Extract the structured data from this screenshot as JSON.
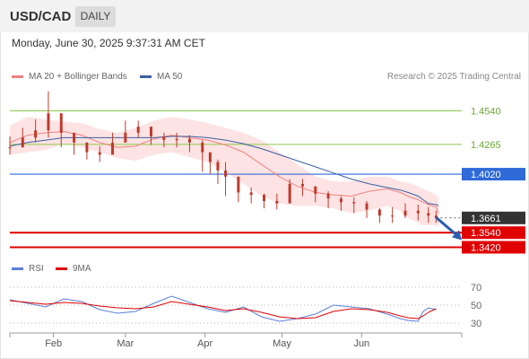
{
  "header": {
    "symbol": "USD/CAD",
    "period": "DAILY"
  },
  "timestamp": "Monday, June 30, 2025 9:37:31 AM CET",
  "legend": {
    "ma20_label": "MA 20 + Bollinger Bands",
    "ma50_label": "MA 50",
    "copyright": "Research © 2025 Trading Central"
  },
  "rsi_legend": {
    "rsi_label": "RSI",
    "ma_label": "9MA"
  },
  "colors": {
    "ma20": "#f08080",
    "ma50": "#3a5fa0",
    "bollinger_fill": "#fde3e3",
    "candle": "#c0392b",
    "support": "#e00000",
    "resistance": "#2e6ad8",
    "target_line": "#8cc84b",
    "current": "#333333",
    "arrow": "#2a5db0",
    "rsi": "#5b7fd6",
    "rsi_ma": "#e00000"
  },
  "chart_data": [
    {
      "type": "candlestick",
      "title": "USD/CAD",
      "timeframe": "DAILY",
      "x_range": [
        "2025-01-15",
        "2025-07-10"
      ],
      "x_tick_labels": [
        "Feb",
        "Mar",
        "Apr",
        "May",
        "Jun"
      ],
      "ylim": [
        1.335,
        1.475
      ],
      "current_price": "1.3661",
      "levels": [
        {
          "value": 1.454,
          "label": "1.4540",
          "kind": "target"
        },
        {
          "value": 1.4265,
          "label": "1.4265",
          "kind": "target"
        },
        {
          "value": 1.402,
          "label": "1.4020",
          "kind": "resistance"
        },
        {
          "value": 1.354,
          "label": "1.3540",
          "kind": "support"
        },
        {
          "value": 1.342,
          "label": "1.3420",
          "kind": "support"
        }
      ],
      "series": [
        {
          "name": "MA 20 + Bollinger Bands",
          "values": [
            1.428,
            1.434,
            1.436,
            1.437,
            1.434,
            1.428,
            1.424,
            1.425,
            1.431,
            1.434,
            1.432,
            1.43,
            1.426,
            1.42,
            1.41,
            1.4,
            1.392,
            1.387,
            1.385,
            1.384,
            1.388,
            1.39,
            1.387,
            1.384,
            1.381,
            1.379,
            1.377,
            1.375,
            1.37
          ]
        },
        {
          "name": "MA 50",
          "values": [
            1.425,
            1.428,
            1.43,
            1.432,
            1.432,
            1.432,
            1.432,
            1.432,
            1.432,
            1.433,
            1.433,
            1.432,
            1.43,
            1.427,
            1.423,
            1.418,
            1.413,
            1.408,
            1.403,
            1.398,
            1.394,
            1.391,
            1.389,
            1.387,
            1.384,
            1.381,
            1.378,
            1.377,
            1.376
          ]
        }
      ],
      "ma_dates": [
        "2025-01-15",
        "2025-01-22",
        "2025-01-29",
        "2025-02-05",
        "2025-02-12",
        "2025-02-19",
        "2025-02-26",
        "2025-03-05",
        "2025-03-12",
        "2025-03-19",
        "2025-03-26",
        "2025-04-02",
        "2025-04-09",
        "2025-04-16",
        "2025-04-23",
        "2025-04-30",
        "2025-05-07",
        "2025-05-14",
        "2025-05-21",
        "2025-05-28",
        "2025-06-04",
        "2025-06-11",
        "2025-06-16",
        "2025-06-19",
        "2025-06-23",
        "2025-06-25",
        "2025-06-27",
        "2025-06-30",
        "2025-07-01"
      ],
      "bollinger_upper": [
        1.442,
        1.449,
        1.447,
        1.445,
        1.444,
        1.439,
        1.436,
        1.44,
        1.446,
        1.449,
        1.447,
        1.444,
        1.44,
        1.436,
        1.43,
        1.42,
        1.41,
        1.4,
        1.396,
        1.396,
        1.4,
        1.4,
        1.396,
        1.395,
        1.392,
        1.39,
        1.388,
        1.385,
        1.382
      ],
      "bollinger_lower": [
        1.418,
        1.42,
        1.422,
        1.427,
        1.424,
        1.42,
        1.415,
        1.413,
        1.418,
        1.42,
        1.416,
        1.412,
        1.404,
        1.394,
        1.384,
        1.378,
        1.376,
        1.376,
        1.374,
        1.37,
        1.372,
        1.376,
        1.372,
        1.366,
        1.362,
        1.36,
        1.36,
        1.36,
        1.359
      ],
      "closes": [
        1.424,
        1.432,
        1.438,
        1.452,
        1.436,
        1.428,
        1.42,
        1.418,
        1.428,
        1.436,
        1.441,
        1.433,
        1.43,
        1.431,
        1.428,
        1.42,
        1.412,
        1.405,
        1.4,
        1.387,
        1.385,
        1.38,
        1.378,
        1.394,
        1.392,
        1.386,
        1.382,
        1.379,
        1.378,
        1.373,
        1.368,
        1.368,
        1.372,
        1.37,
        1.368,
        1.366
      ],
      "highs": [
        1.433,
        1.44,
        1.447,
        1.47,
        1.448,
        1.436,
        1.428,
        1.425,
        1.436,
        1.446,
        1.446,
        1.44,
        1.436,
        1.436,
        1.434,
        1.43,
        1.418,
        1.414,
        1.412,
        1.392,
        1.391,
        1.386,
        1.386,
        1.398,
        1.398,
        1.392,
        1.388,
        1.384,
        1.383,
        1.38,
        1.374,
        1.375,
        1.378,
        1.377,
        1.375,
        1.372
      ],
      "lows": [
        1.418,
        1.425,
        1.428,
        1.432,
        1.424,
        1.418,
        1.414,
        1.412,
        1.42,
        1.428,
        1.432,
        1.426,
        1.424,
        1.424,
        1.42,
        1.404,
        1.402,
        1.394,
        1.384,
        1.379,
        1.378,
        1.374,
        1.373,
        1.382,
        1.384,
        1.379,
        1.374,
        1.372,
        1.37,
        1.366,
        1.362,
        1.362,
        1.366,
        1.364,
        1.362,
        1.362
      ],
      "candle_dates": [
        "2025-01-15",
        "2025-01-20",
        "2025-01-25",
        "2025-01-30",
        "2025-02-04",
        "2025-02-09",
        "2025-02-14",
        "2025-02-19",
        "2025-02-24",
        "2025-03-01",
        "2025-03-06",
        "2025-03-11",
        "2025-03-16",
        "2025-03-21",
        "2025-03-26",
        "2025-03-31",
        "2025-04-03",
        "2025-04-06",
        "2025-04-09",
        "2025-04-14",
        "2025-04-19",
        "2025-04-24",
        "2025-04-29",
        "2025-05-04",
        "2025-05-09",
        "2025-05-14",
        "2025-05-19",
        "2025-05-24",
        "2025-05-29",
        "2025-06-03",
        "2025-06-08",
        "2025-06-13",
        "2025-06-18",
        "2025-06-23",
        "2025-06-27",
        "2025-06-30"
      ],
      "forecast": {
        "from_date": "2025-06-30",
        "from_value": 1.3665,
        "to_date": "2025-07-10",
        "to_value": 1.348
      }
    },
    {
      "type": "line",
      "title": "RSI",
      "ylim": [
        25,
        75
      ],
      "y_ticks": [
        30,
        50,
        70
      ],
      "y_tick_labels": [
        "30",
        "50",
        "70"
      ],
      "dates": [
        "2025-01-15",
        "2025-01-22",
        "2025-01-29",
        "2025-02-05",
        "2025-02-12",
        "2025-02-19",
        "2025-02-26",
        "2025-03-05",
        "2025-03-12",
        "2025-03-19",
        "2025-03-26",
        "2025-04-02",
        "2025-04-09",
        "2025-04-16",
        "2025-04-23",
        "2025-04-30",
        "2025-05-07",
        "2025-05-14",
        "2025-05-21",
        "2025-05-28",
        "2025-06-04",
        "2025-06-11",
        "2025-06-16",
        "2025-06-19",
        "2025-06-23",
        "2025-06-25",
        "2025-06-27",
        "2025-06-30"
      ],
      "series": [
        {
          "name": "RSI",
          "values": [
            56,
            52,
            48,
            57,
            54,
            45,
            41,
            43,
            52,
            60,
            53,
            46,
            42,
            48,
            37,
            32,
            35,
            40,
            50,
            48,
            46,
            40,
            35,
            33,
            32,
            43,
            47,
            45
          ]
        },
        {
          "name": "9MA",
          "values": [
            55,
            53,
            51,
            53,
            52,
            49,
            47,
            46,
            48,
            54,
            51,
            48,
            44,
            46,
            42,
            37,
            35,
            36,
            43,
            46,
            45,
            42,
            38,
            36,
            35,
            38,
            42,
            46
          ]
        }
      ]
    }
  ]
}
